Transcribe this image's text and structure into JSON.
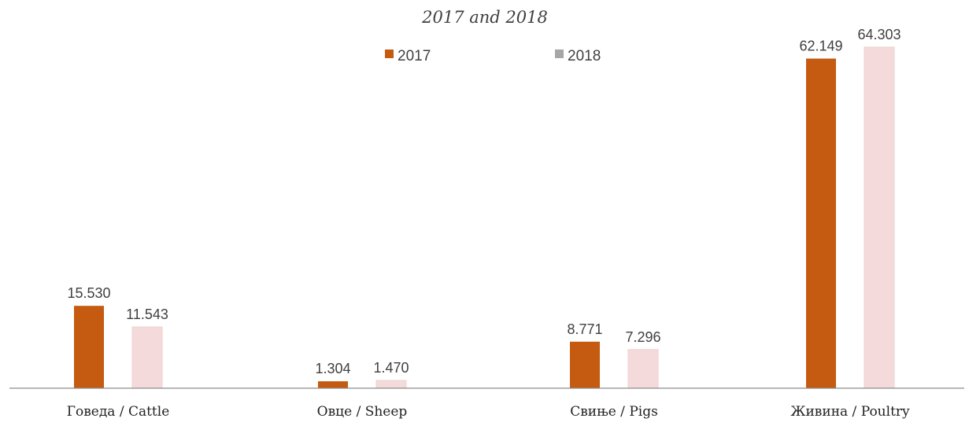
{
  "chart_data": {
    "type": "bar",
    "title": "",
    "subtitle": "2017 and 2018",
    "categories": [
      "Говеда / Cattle",
      "Овце / Sheep",
      "Свиње / Pigs",
      "Живина / Poultry"
    ],
    "series": [
      {
        "name": "2017",
        "color": "#c55a11",
        "values": [
          15.53,
          1.304,
          8.771,
          62.149
        ],
        "labels": [
          "15.530",
          "1.304",
          "8.771",
          "62.149"
        ]
      },
      {
        "name": "2018",
        "color": "#f4dada",
        "values": [
          11.543,
          1.47,
          7.296,
          64.303
        ],
        "labels": [
          "11.543",
          "1.470",
          "7.296",
          "64.303"
        ]
      }
    ],
    "xlabel": "",
    "ylabel": "",
    "ylim": [
      0,
      70
    ],
    "grid": false,
    "legend": "top-center"
  }
}
